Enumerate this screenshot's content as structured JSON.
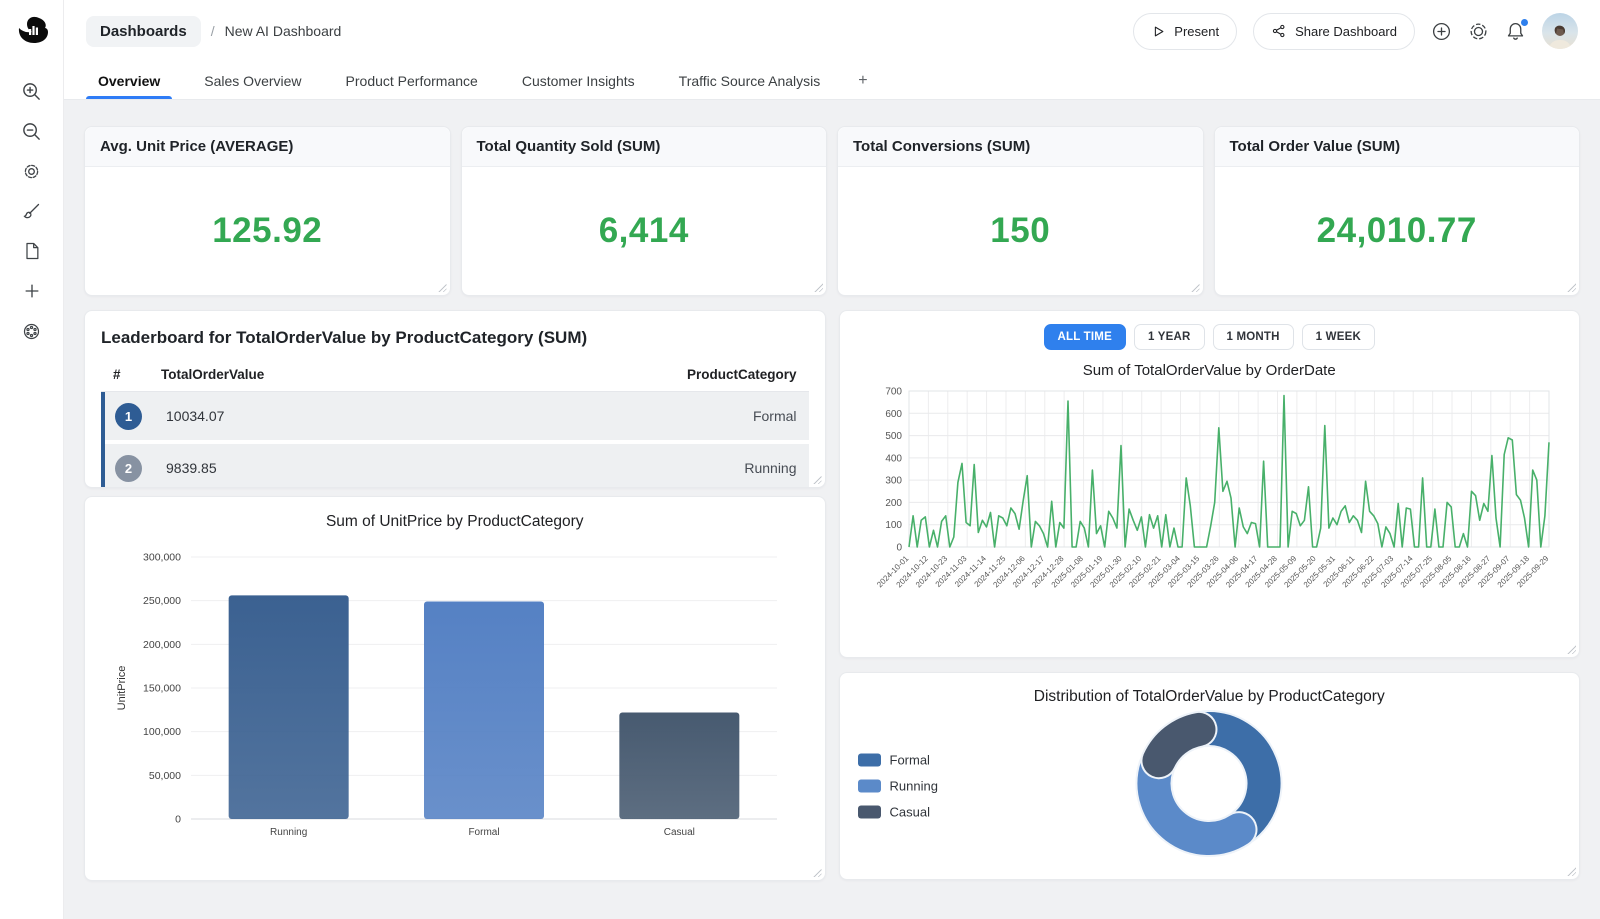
{
  "colors": {
    "accent_blue": "#2f80ed",
    "tab_underline": "#2e7cf6",
    "kpi_green": "#33a852",
    "line_green": "#48b06a",
    "rank1_badge": "#2e5c94",
    "rank2_badge": "#8792a2",
    "notification_dot": "#2f80ed"
  },
  "header": {
    "breadcrumb": {
      "section": "Dashboards",
      "separator": "/",
      "page": "New AI Dashboard"
    },
    "present_label": "Present",
    "share_label": "Share Dashboard"
  },
  "tabs": {
    "items": [
      "Overview",
      "Sales Overview",
      "Product Performance",
      "Customer Insights",
      "Traffic Source Analysis"
    ],
    "active": "Overview",
    "add_label": "+"
  },
  "kpis": [
    {
      "title": "Avg. Unit Price (AVERAGE)",
      "value": "125.92"
    },
    {
      "title": "Total Quantity Sold (SUM)",
      "value": "6,414"
    },
    {
      "title": "Total Conversions (SUM)",
      "value": "150"
    },
    {
      "title": "Total Order Value (SUM)",
      "value": "24,010.77"
    }
  ],
  "leaderboard": {
    "title": "Leaderboard for TotalOrderValue by ProductCategory (SUM)",
    "columns": {
      "rank": "#",
      "value": "TotalOrderValue",
      "category": "ProductCategory"
    },
    "rows": [
      {
        "rank": "1",
        "value": "10034.07",
        "category": "Formal"
      },
      {
        "rank": "2",
        "value": "9839.85",
        "category": "Running"
      }
    ]
  },
  "time_range": {
    "options": [
      "ALL TIME",
      "1 YEAR",
      "1 MONTH",
      "1 WEEK"
    ],
    "active": "ALL TIME"
  },
  "chart_data": [
    {
      "type": "line",
      "title": "Sum of TotalOrderValue by OrderDate",
      "xlabel": "OrderDate",
      "ylabel": "TotalOrderValue",
      "ylim": [
        0,
        700
      ],
      "y_ticks": [
        0,
        100,
        200,
        300,
        400,
        500,
        600,
        700
      ],
      "grid": true,
      "line_color": "#48b06a",
      "x_tick_labels": [
        "2024-10-01",
        "2024-10-12",
        "2024-10-23",
        "2024-11-03",
        "2024-11-14",
        "2024-11-25",
        "2024-12-06",
        "2024-12-17",
        "2024-12-28",
        "2025-01-08",
        "2025-01-19",
        "2025-01-30",
        "2025-02-10",
        "2025-02-21",
        "2025-03-04",
        "2025-03-15",
        "2025-03-26",
        "2025-04-06",
        "2025-04-17",
        "2025-04-28",
        "2025-05-09",
        "2025-05-20",
        "2025-05-31",
        "2025-06-11",
        "2025-06-22",
        "2025-07-03",
        "2025-07-14",
        "2025-07-25",
        "2025-08-05",
        "2025-08-16",
        "2025-08-27",
        "2025-09-07",
        "2025-09-18",
        "2025-09-29"
      ],
      "values": [
        0,
        140,
        0,
        120,
        135,
        0,
        75,
        0,
        115,
        140,
        0,
        45,
        290,
        375,
        110,
        95,
        370,
        65,
        120,
        90,
        155,
        0,
        140,
        130,
        95,
        175,
        150,
        80,
        205,
        320,
        0,
        115,
        95,
        60,
        0,
        205,
        0,
        110,
        85,
        655,
        0,
        0,
        115,
        85,
        0,
        345,
        60,
        95,
        0,
        160,
        130,
        85,
        455,
        0,
        170,
        120,
        75,
        135,
        0,
        145,
        85,
        140,
        0,
        145,
        0,
        85,
        0,
        0,
        310,
        185,
        0,
        0,
        0,
        0,
        95,
        200,
        535,
        250,
        295,
        220,
        0,
        175,
        90,
        60,
        110,
        105,
        0,
        385,
        0,
        0,
        0,
        0,
        680,
        0,
        160,
        150,
        95,
        120,
        270,
        0,
        0,
        85,
        545,
        85,
        130,
        100,
        160,
        185,
        110,
        140,
        120,
        65,
        295,
        160,
        140,
        105,
        0,
        90,
        60,
        0,
        195,
        0,
        175,
        170,
        0,
        0,
        310,
        0,
        0,
        170,
        0,
        0,
        200,
        180,
        0,
        0,
        60,
        0,
        250,
        230,
        120,
        195,
        160,
        410,
        130,
        0,
        415,
        490,
        480,
        235,
        210,
        130,
        0,
        345,
        300,
        0,
        140,
        470
      ]
    },
    {
      "type": "bar",
      "title": "Sum of UnitPrice by ProductCategory",
      "xlabel": "ProductCategory",
      "ylabel": "UnitPrice",
      "ylim": [
        0,
        300000
      ],
      "y_ticks": [
        0,
        50000,
        100000,
        150000,
        200000,
        250000,
        300000
      ],
      "y_tick_labels": [
        "0",
        "50,000",
        "100,000",
        "150,000",
        "200,000",
        "250,000",
        "300,000"
      ],
      "grid": true,
      "categories": [
        "Running",
        "Formal",
        "Casual"
      ],
      "values": [
        256000,
        249000,
        122000
      ],
      "colors": [
        "#3b6191",
        "#5581c4",
        "#475a70"
      ]
    },
    {
      "type": "donut",
      "title": "Distribution of TotalOrderValue by ProductCategory",
      "labels": [
        "Formal",
        "Running",
        "Casual"
      ],
      "values": [
        10034.07,
        9839.85,
        4136.85
      ],
      "colors": [
        "#3d6ea8",
        "#5b8ac9",
        "#49586e"
      ],
      "legend_position": "left"
    }
  ]
}
